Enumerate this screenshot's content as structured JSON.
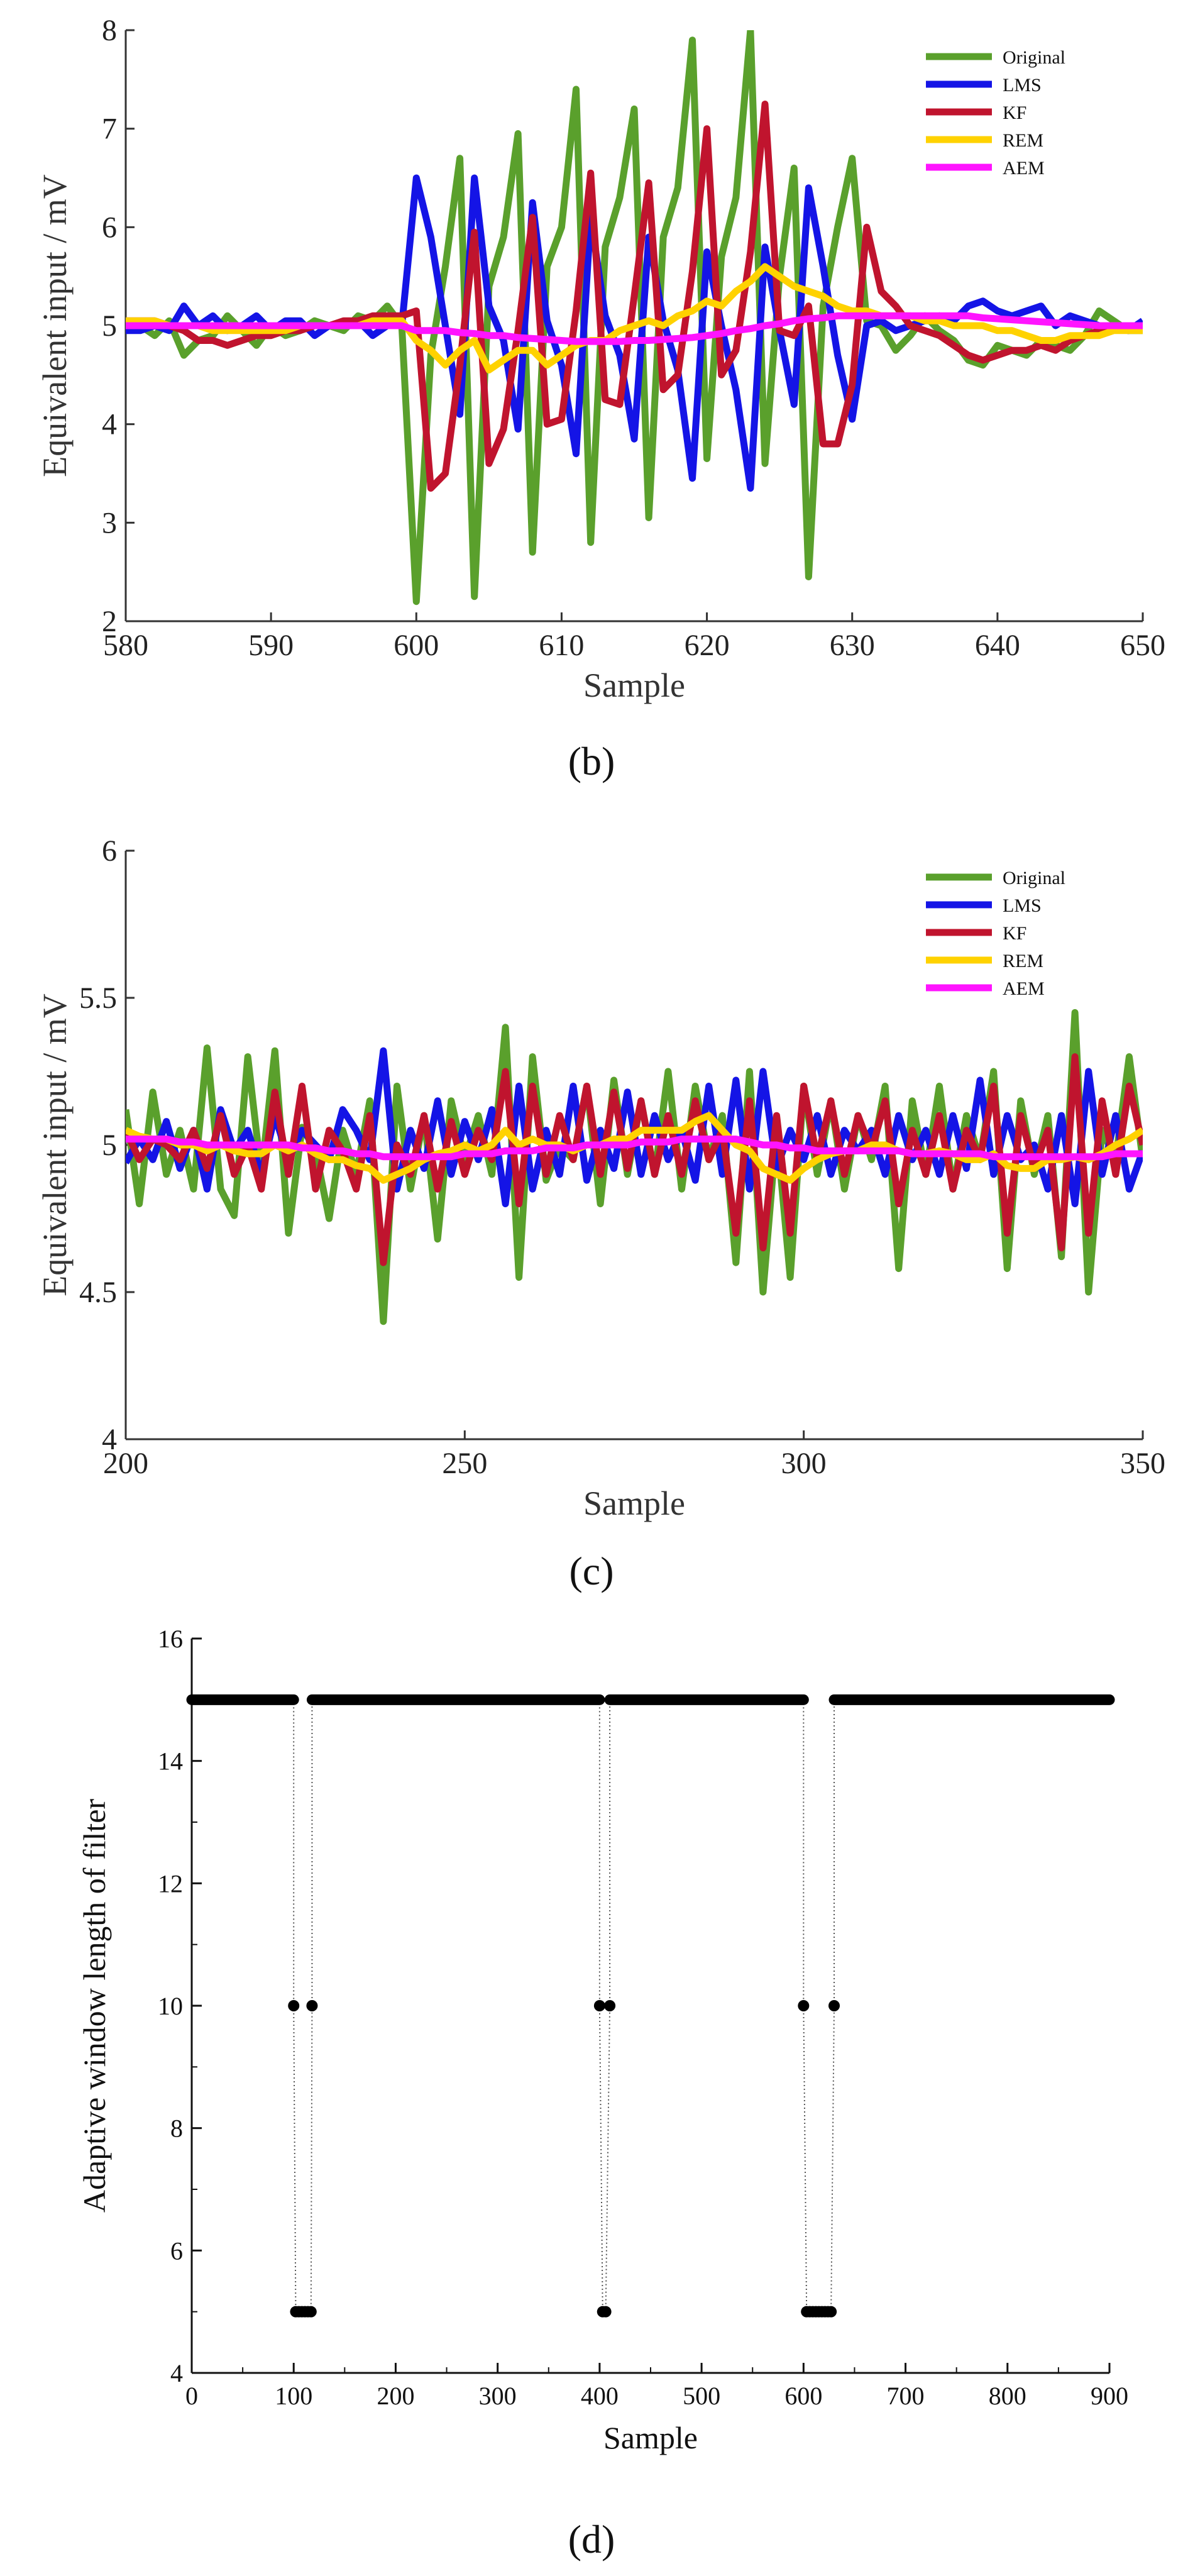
{
  "figure": {
    "captions": [
      "(b)",
      "(c)",
      "(d)"
    ]
  },
  "colors": {
    "Original": "#5aa02c",
    "LMS": "#1414e6",
    "KF": "#c0142e",
    "REM": "#ffd200",
    "AEM": "#ff14ff"
  },
  "chart_data": [
    {
      "id": "b",
      "type": "line",
      "title": "",
      "caption": "(b)",
      "xlabel": "Sample",
      "ylabel": "Equivalent input / mV",
      "xlim": [
        580,
        650
      ],
      "ylim": [
        2,
        8
      ],
      "xticks": [
        580,
        590,
        600,
        610,
        620,
        630,
        640,
        650
      ],
      "yticks": [
        2,
        3,
        4,
        5,
        6,
        7,
        8
      ],
      "xtick_labels": [
        "580",
        "590",
        "600",
        "610",
        "620",
        "630",
        "640",
        "650"
      ],
      "ytick_labels": [
        "2",
        "3",
        "4",
        "5",
        "6",
        "7",
        "8"
      ],
      "legend_position": "top-right",
      "x": [
        580,
        581,
        582,
        583,
        584,
        585,
        586,
        587,
        588,
        589,
        590,
        591,
        592,
        593,
        594,
        595,
        596,
        597,
        598,
        599,
        600,
        601,
        602,
        603,
        604,
        605,
        606,
        607,
        608,
        609,
        610,
        611,
        612,
        613,
        614,
        615,
        616,
        617,
        618,
        619,
        620,
        621,
        622,
        623,
        624,
        625,
        626,
        627,
        628,
        629,
        630,
        631,
        632,
        633,
        634,
        635,
        636,
        637,
        638,
        639,
        640,
        641,
        642,
        643,
        644,
        645,
        646,
        647,
        648,
        649,
        650
      ],
      "series": [
        {
          "name": "Original",
          "values": [
            5.05,
            5.0,
            4.9,
            5.05,
            4.7,
            4.85,
            4.9,
            5.1,
            4.95,
            4.8,
            5.0,
            4.9,
            4.95,
            5.05,
            5.0,
            4.95,
            5.1,
            5.05,
            5.2,
            5.0,
            2.2,
            4.7,
            5.6,
            6.7,
            2.25,
            5.4,
            5.9,
            6.95,
            2.7,
            5.6,
            6.0,
            7.4,
            2.8,
            5.8,
            6.3,
            7.2,
            3.05,
            5.9,
            6.4,
            7.9,
            3.65,
            5.7,
            6.3,
            8.0,
            3.6,
            5.5,
            6.6,
            2.45,
            5.2,
            6.0,
            6.7,
            5.05,
            5.0,
            4.75,
            4.9,
            5.1,
            4.95,
            4.85,
            4.65,
            4.6,
            4.8,
            4.75,
            4.7,
            4.85,
            4.8,
            4.75,
            4.9,
            5.15,
            5.05,
            4.95,
            4.95
          ]
        },
        {
          "name": "LMS",
          "values": [
            4.95,
            4.95,
            5.0,
            4.95,
            5.2,
            5.0,
            5.1,
            4.95,
            5.0,
            5.1,
            4.95,
            5.05,
            5.05,
            4.9,
            5.0,
            5.0,
            5.05,
            4.9,
            5.0,
            5.0,
            6.5,
            5.9,
            5.0,
            4.1,
            6.5,
            5.2,
            4.85,
            3.95,
            6.25,
            5.05,
            4.6,
            3.7,
            6.1,
            5.1,
            4.7,
            3.85,
            5.9,
            5.05,
            4.55,
            3.45,
            5.75,
            5.0,
            4.35,
            3.35,
            5.8,
            4.95,
            4.2,
            6.4,
            5.6,
            4.7,
            4.05,
            5.0,
            5.05,
            4.95,
            5.0,
            5.05,
            5.1,
            5.05,
            5.2,
            5.25,
            5.15,
            5.1,
            5.15,
            5.2,
            5.0,
            5.1,
            5.05,
            5.0,
            5.0,
            4.95,
            5.05
          ]
        },
        {
          "name": "KF",
          "values": [
            5.05,
            5.05,
            5.05,
            5.0,
            4.95,
            4.85,
            4.85,
            4.8,
            4.85,
            4.9,
            4.9,
            4.95,
            4.95,
            5.0,
            5.0,
            5.05,
            5.05,
            5.1,
            5.1,
            5.1,
            5.15,
            3.35,
            3.5,
            4.6,
            5.95,
            3.6,
            3.95,
            4.95,
            6.1,
            4.0,
            4.05,
            5.15,
            6.55,
            4.25,
            4.2,
            5.3,
            6.45,
            4.35,
            4.5,
            5.55,
            7.0,
            4.5,
            4.75,
            5.75,
            7.25,
            4.95,
            4.9,
            5.2,
            3.8,
            3.8,
            4.4,
            6.0,
            5.35,
            5.2,
            5.0,
            4.95,
            4.9,
            4.8,
            4.7,
            4.65,
            4.7,
            4.75,
            4.75,
            4.8,
            4.75,
            4.85,
            4.9,
            4.95,
            5.0,
            5.0,
            5.0
          ]
        },
        {
          "name": "REM",
          "values": [
            5.05,
            5.05,
            5.05,
            5.0,
            5.0,
            5.0,
            4.95,
            4.95,
            4.95,
            4.95,
            4.95,
            4.95,
            5.0,
            5.0,
            5.0,
            5.0,
            5.0,
            5.05,
            5.05,
            5.05,
            4.85,
            4.75,
            4.6,
            4.75,
            4.85,
            4.55,
            4.65,
            4.75,
            4.75,
            4.6,
            4.7,
            4.8,
            4.85,
            4.85,
            4.95,
            5.0,
            5.05,
            5.0,
            5.1,
            5.15,
            5.25,
            5.2,
            5.35,
            5.45,
            5.6,
            5.5,
            5.4,
            5.35,
            5.3,
            5.2,
            5.15,
            5.15,
            5.1,
            5.1,
            5.1,
            5.05,
            5.05,
            5.0,
            5.0,
            5.0,
            4.95,
            4.95,
            4.9,
            4.85,
            4.85,
            4.9,
            4.9,
            4.9,
            4.95,
            4.95,
            4.95
          ]
        },
        {
          "name": "AEM",
          "values": [
            5.0,
            5.0,
            5.0,
            5.0,
            5.0,
            5.0,
            5.0,
            5.0,
            5.0,
            5.0,
            5.0,
            5.0,
            5.0,
            5.0,
            5.0,
            5.0,
            5.0,
            5.0,
            5.0,
            5.0,
            4.95,
            4.95,
            4.95,
            4.93,
            4.92,
            4.9,
            4.9,
            4.88,
            4.87,
            4.86,
            4.85,
            4.84,
            4.84,
            4.84,
            4.84,
            4.85,
            4.85,
            4.86,
            4.87,
            4.88,
            4.9,
            4.92,
            4.95,
            4.97,
            5.0,
            5.02,
            5.05,
            5.07,
            5.08,
            5.1,
            5.1,
            5.1,
            5.1,
            5.1,
            5.1,
            5.1,
            5.1,
            5.1,
            5.1,
            5.08,
            5.07,
            5.06,
            5.05,
            5.04,
            5.03,
            5.02,
            5.01,
            5.0,
            5.0,
            5.0,
            5.0
          ]
        }
      ]
    },
    {
      "id": "c",
      "type": "line",
      "title": "",
      "caption": "(c)",
      "xlabel": "Sample",
      "ylabel": "Equivalent input / mV",
      "xlim": [
        200,
        350
      ],
      "ylim": [
        4,
        6
      ],
      "xticks": [
        200,
        250,
        300,
        350
      ],
      "yticks": [
        4,
        4.5,
        5,
        5.5,
        6
      ],
      "xtick_labels": [
        "200",
        "250",
        "300",
        "350"
      ],
      "ytick_labels": [
        "4",
        "4.5",
        "5",
        "5.5",
        "6"
      ],
      "legend_position": "top-right",
      "x": [
        200,
        202,
        204,
        206,
        208,
        210,
        212,
        214,
        216,
        218,
        220,
        222,
        224,
        226,
        228,
        230,
        232,
        234,
        236,
        238,
        240,
        242,
        244,
        246,
        248,
        250,
        252,
        254,
        256,
        258,
        260,
        262,
        264,
        266,
        268,
        270,
        272,
        274,
        276,
        278,
        280,
        282,
        284,
        286,
        288,
        290,
        292,
        294,
        296,
        298,
        300,
        302,
        304,
        306,
        308,
        310,
        312,
        314,
        316,
        318,
        320,
        322,
        324,
        326,
        328,
        330,
        332,
        334,
        336,
        338,
        340,
        342,
        344,
        346,
        348,
        350
      ],
      "series": [
        {
          "name": "Original",
          "values": [
            5.12,
            4.8,
            5.18,
            4.9,
            5.05,
            4.85,
            5.33,
            4.85,
            4.76,
            5.3,
            4.9,
            5.32,
            4.7,
            5.06,
            4.98,
            4.75,
            5.05,
            4.9,
            5.15,
            4.4,
            5.2,
            4.85,
            5.1,
            4.68,
            5.15,
            4.95,
            5.1,
            4.9,
            5.4,
            4.55,
            5.3,
            4.88,
            5.0,
            4.95,
            5.2,
            4.8,
            5.22,
            4.9,
            5.15,
            4.9,
            5.25,
            4.85,
            5.2,
            4.95,
            5.1,
            4.6,
            5.25,
            4.5,
            5.05,
            4.55,
            5.2,
            4.9,
            5.15,
            4.85,
            5.1,
            4.95,
            5.2,
            4.58,
            5.15,
            4.9,
            5.2,
            4.85,
            5.1,
            4.95,
            5.25,
            4.58,
            5.15,
            4.9,
            5.1,
            4.62,
            5.45,
            4.5,
            5.05,
            4.95,
            5.3,
            4.95
          ]
        },
        {
          "name": "LMS",
          "values": [
            4.94,
            5.02,
            4.95,
            5.08,
            4.92,
            5.05,
            4.85,
            5.12,
            4.98,
            5.05,
            4.9,
            5.1,
            4.95,
            5.05,
            5.0,
            4.95,
            5.12,
            5.05,
            4.95,
            5.32,
            4.85,
            5.05,
            4.92,
            5.15,
            4.9,
            5.08,
            4.95,
            5.12,
            4.8,
            5.2,
            4.85,
            5.05,
            4.9,
            5.2,
            4.88,
            5.05,
            4.92,
            5.18,
            4.9,
            5.1,
            4.95,
            5.05,
            4.88,
            5.2,
            4.9,
            5.22,
            4.85,
            5.25,
            4.92,
            5.05,
            4.95,
            5.1,
            4.9,
            5.05,
            4.98,
            5.05,
            4.9,
            5.1,
            4.95,
            5.05,
            4.9,
            5.1,
            4.92,
            5.22,
            4.9,
            5.1,
            4.95,
            5.0,
            4.85,
            5.1,
            4.8,
            5.25,
            4.9,
            5.1,
            4.85,
            4.98
          ]
        },
        {
          "name": "KF",
          "values": [
            5.05,
            4.95,
            5.02,
            5.0,
            4.95,
            5.05,
            4.92,
            5.1,
            4.9,
            5.0,
            4.85,
            5.18,
            4.9,
            5.2,
            4.85,
            5.05,
            4.98,
            4.85,
            5.1,
            4.6,
            5.0,
            4.9,
            5.1,
            4.85,
            5.08,
            4.9,
            5.05,
            4.95,
            5.25,
            4.8,
            5.2,
            4.9,
            5.1,
            4.95,
            5.2,
            4.9,
            5.18,
            4.92,
            5.15,
            4.9,
            5.1,
            4.9,
            5.15,
            4.95,
            5.05,
            4.7,
            5.15,
            4.65,
            5.1,
            4.7,
            5.2,
            4.95,
            5.15,
            4.9,
            5.1,
            4.98,
            5.15,
            4.8,
            5.05,
            4.9,
            5.1,
            4.85,
            5.05,
            4.95,
            5.2,
            4.7,
            5.1,
            4.92,
            5.05,
            4.65,
            5.3,
            4.7,
            5.15,
            4.9,
            5.2,
            5.0
          ]
        },
        {
          "name": "REM",
          "values": [
            5.05,
            5.03,
            5.02,
            5.02,
            5.0,
            5.0,
            4.98,
            5.0,
            4.98,
            4.97,
            4.97,
            5.0,
            4.98,
            5.0,
            4.97,
            4.95,
            4.95,
            4.93,
            4.92,
            4.88,
            4.9,
            4.92,
            4.95,
            4.97,
            4.98,
            5.0,
            4.98,
            5.0,
            5.05,
            5.0,
            5.02,
            5.0,
            5.0,
            4.98,
            5.0,
            5.0,
            5.02,
            5.02,
            5.05,
            5.05,
            5.05,
            5.05,
            5.08,
            5.1,
            5.05,
            5.0,
            4.98,
            4.92,
            4.9,
            4.88,
            4.92,
            4.95,
            4.97,
            4.98,
            4.98,
            5.0,
            5.0,
            4.98,
            4.97,
            4.97,
            4.98,
            4.97,
            4.95,
            4.95,
            4.97,
            4.93,
            4.92,
            4.92,
            4.95,
            4.95,
            4.96,
            4.95,
            4.97,
            5.0,
            5.02,
            5.05
          ]
        },
        {
          "name": "AEM",
          "values": [
            5.02,
            5.02,
            5.02,
            5.02,
            5.01,
            5.01,
            5.0,
            5.0,
            5.0,
            5.0,
            5.0,
            5.0,
            5.0,
            4.99,
            4.99,
            4.98,
            4.98,
            4.97,
            4.97,
            4.96,
            4.96,
            4.96,
            4.96,
            4.96,
            4.96,
            4.97,
            4.97,
            4.97,
            4.98,
            4.98,
            4.98,
            4.99,
            4.99,
            4.99,
            5.0,
            5.0,
            5.0,
            5.0,
            5.01,
            5.01,
            5.01,
            5.02,
            5.02,
            5.02,
            5.02,
            5.02,
            5.01,
            5.0,
            5.0,
            4.99,
            4.99,
            4.98,
            4.98,
            4.98,
            4.98,
            4.98,
            4.98,
            4.98,
            4.97,
            4.97,
            4.97,
            4.97,
            4.97,
            4.97,
            4.96,
            4.96,
            4.96,
            4.96,
            4.96,
            4.96,
            4.96,
            4.96,
            4.96,
            4.97,
            4.97,
            4.97
          ]
        }
      ]
    },
    {
      "id": "d",
      "type": "scatter",
      "title": "",
      "caption": "(d)",
      "xlabel": "Sample",
      "ylabel": "Adaptive window length of filter",
      "xlim": [
        0,
        900
      ],
      "ylim": [
        4,
        16
      ],
      "xticks": [
        0,
        100,
        200,
        300,
        400,
        500,
        600,
        700,
        800,
        900
      ],
      "yticks": [
        4,
        6,
        8,
        10,
        12,
        14,
        16
      ],
      "xtick_labels": [
        "0",
        "100",
        "200",
        "300",
        "400",
        "500",
        "600",
        "700",
        "800",
        "900"
      ],
      "ytick_labels": [
        "4",
        "6",
        "8",
        "10",
        "12",
        "14",
        "16"
      ],
      "connector_style": "dotted",
      "segments_at_15": [
        [
          0,
          100
        ],
        [
          118,
          400
        ],
        [
          410,
          600
        ],
        [
          630,
          900
        ]
      ],
      "points": [
        {
          "x": 100,
          "y": 10
        },
        {
          "x": 102,
          "y": 5
        },
        {
          "x": 105,
          "y": 5
        },
        {
          "x": 108,
          "y": 5
        },
        {
          "x": 111,
          "y": 5
        },
        {
          "x": 114,
          "y": 5
        },
        {
          "x": 117,
          "y": 5
        },
        {
          "x": 118,
          "y": 10
        },
        {
          "x": 400,
          "y": 10
        },
        {
          "x": 403,
          "y": 5
        },
        {
          "x": 406,
          "y": 5
        },
        {
          "x": 410,
          "y": 10
        },
        {
          "x": 600,
          "y": 10
        },
        {
          "x": 603,
          "y": 5
        },
        {
          "x": 606,
          "y": 5
        },
        {
          "x": 609,
          "y": 5
        },
        {
          "x": 612,
          "y": 5
        },
        {
          "x": 615,
          "y": 5
        },
        {
          "x": 618,
          "y": 5
        },
        {
          "x": 621,
          "y": 5
        },
        {
          "x": 624,
          "y": 5
        },
        {
          "x": 627,
          "y": 5
        },
        {
          "x": 630,
          "y": 10
        }
      ]
    }
  ]
}
